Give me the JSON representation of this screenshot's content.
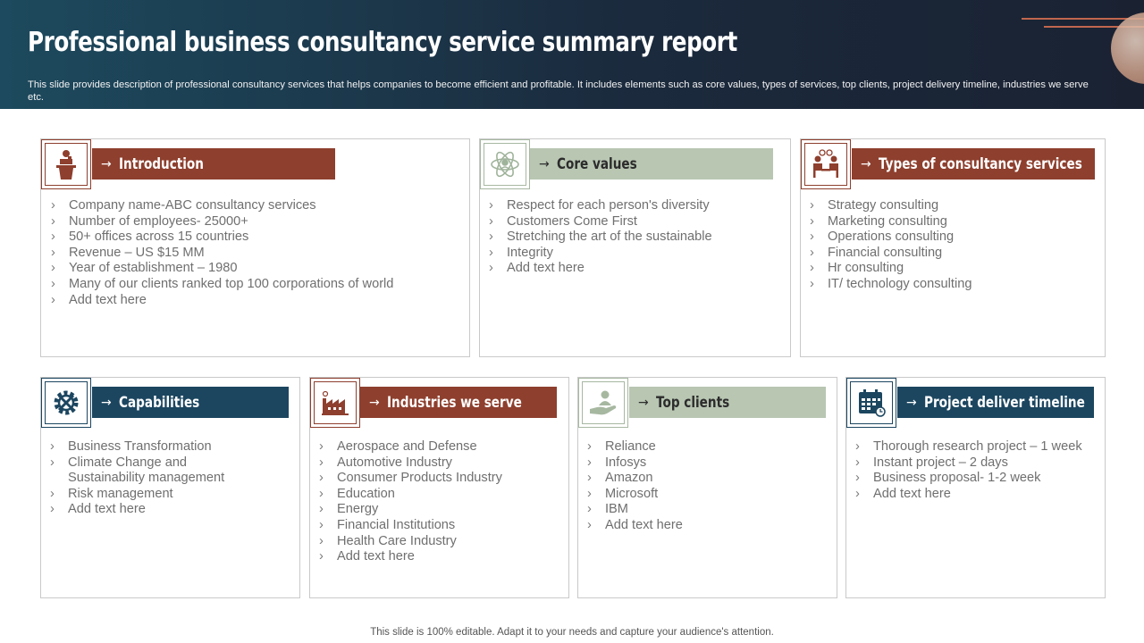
{
  "header": {
    "title": "Professional business consultancy service summary report",
    "subtitle": "This slide provides description of professional consultancy services that helps companies to become efficient and profitable. It includes elements such as core values, types of services, top clients, project delivery timeline, industries we serve etc."
  },
  "colors": {
    "rust": "#8e3f2e",
    "sage": "#b8c6b2",
    "navy": "#1c4660",
    "header": "#1b2a3d"
  },
  "arrow": "→",
  "cards": {
    "introduction": {
      "icon": "speaker-podium-icon",
      "label": "Introduction",
      "items": [
        "Company name-ABC consultancy services",
        "Number of employees- 25000+",
        "50+ offices across 15 countries",
        "Revenue – US $15 MM",
        "Year of establishment – 1980",
        "Many of our clients ranked top 100 corporations of world",
        "Add text here"
      ]
    },
    "core_values": {
      "icon": "atom-person-icon",
      "label": "Core values",
      "items": [
        "Respect for each person's diversity",
        "Customers Come First",
        "Stretching the art of the sustainable",
        "Integrity",
        "Add text here"
      ]
    },
    "types": {
      "icon": "consultation-people-icon",
      "label": "Types of consultancy  services",
      "items": [
        "Strategy consulting",
        "Marketing consulting",
        "Operations consulting",
        "Financial consulting",
        "Hr consulting",
        "IT/ technology consulting"
      ]
    },
    "capabilities": {
      "icon": "gear-tools-icon",
      "label": "Capabilities",
      "items": [
        "Business Transformation",
        "Climate Change and Sustainability management",
        "Risk management",
        "Add text here"
      ]
    },
    "industries": {
      "icon": "factory-icon",
      "label": "Industries  we serve",
      "items": [
        "Aerospace and Defense",
        "Automotive Industry",
        "Consumer Products Industry",
        "Education",
        "Energy",
        "Financial Institutions",
        "Health Care Industry",
        "Add text here"
      ]
    },
    "top_clients": {
      "icon": "hand-person-icon",
      "label": "Top clients",
      "items": [
        "Reliance",
        "Infosys",
        "Amazon",
        "Microsoft",
        "IBM",
        "Add text here"
      ]
    },
    "timeline": {
      "icon": "calendar-icon",
      "label": "Project deliver  timeline",
      "items": [
        "Thorough research project – 1 week",
        "Instant project – 2 days",
        "Business proposal- 1-2 week",
        "Add text here"
      ]
    }
  },
  "footer": "This slide is 100% editable. Adapt it to your needs and capture your audience's attention."
}
